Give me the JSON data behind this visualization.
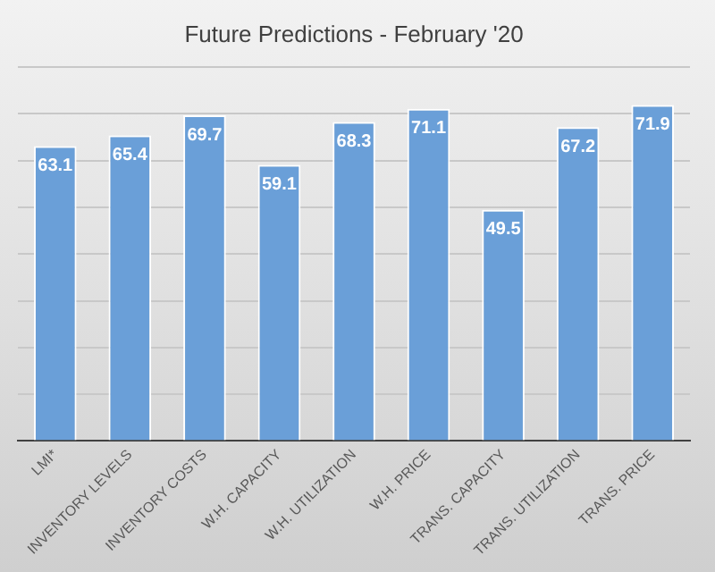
{
  "chart_data": {
    "type": "bar",
    "title": "Future Predictions - February '20",
    "categories": [
      "LMI*",
      "INVENTORY LEVELS",
      "INVENTORY COSTS",
      "W.H. CAPACITY",
      "W.H. UTILIZATION",
      "W.H. PRICE",
      "TRANS. CAPACITY",
      "TRANS. UTILIZATION",
      "TRANS. PRICE"
    ],
    "values": [
      63.1,
      65.4,
      69.7,
      59.1,
      68.3,
      71.1,
      49.5,
      67.2,
      71.9
    ],
    "color": "#6a9fd8",
    "ylim": [
      0,
      80
    ],
    "yticks": [
      {
        "value": 0,
        "label": null
      },
      {
        "value": 10,
        "label": null
      },
      {
        "value": 20,
        "label": null
      },
      {
        "value": 30,
        "label": null
      },
      {
        "value": 40,
        "label": null
      },
      {
        "value": 50,
        "label": null
      },
      {
        "value": 60,
        "label": null
      },
      {
        "value": 70,
        "label": null
      },
      {
        "value": 80,
        "label": null
      }
    ],
    "grid": "y",
    "legend": false,
    "tick_labels": "x",
    "data_labels": true
  }
}
